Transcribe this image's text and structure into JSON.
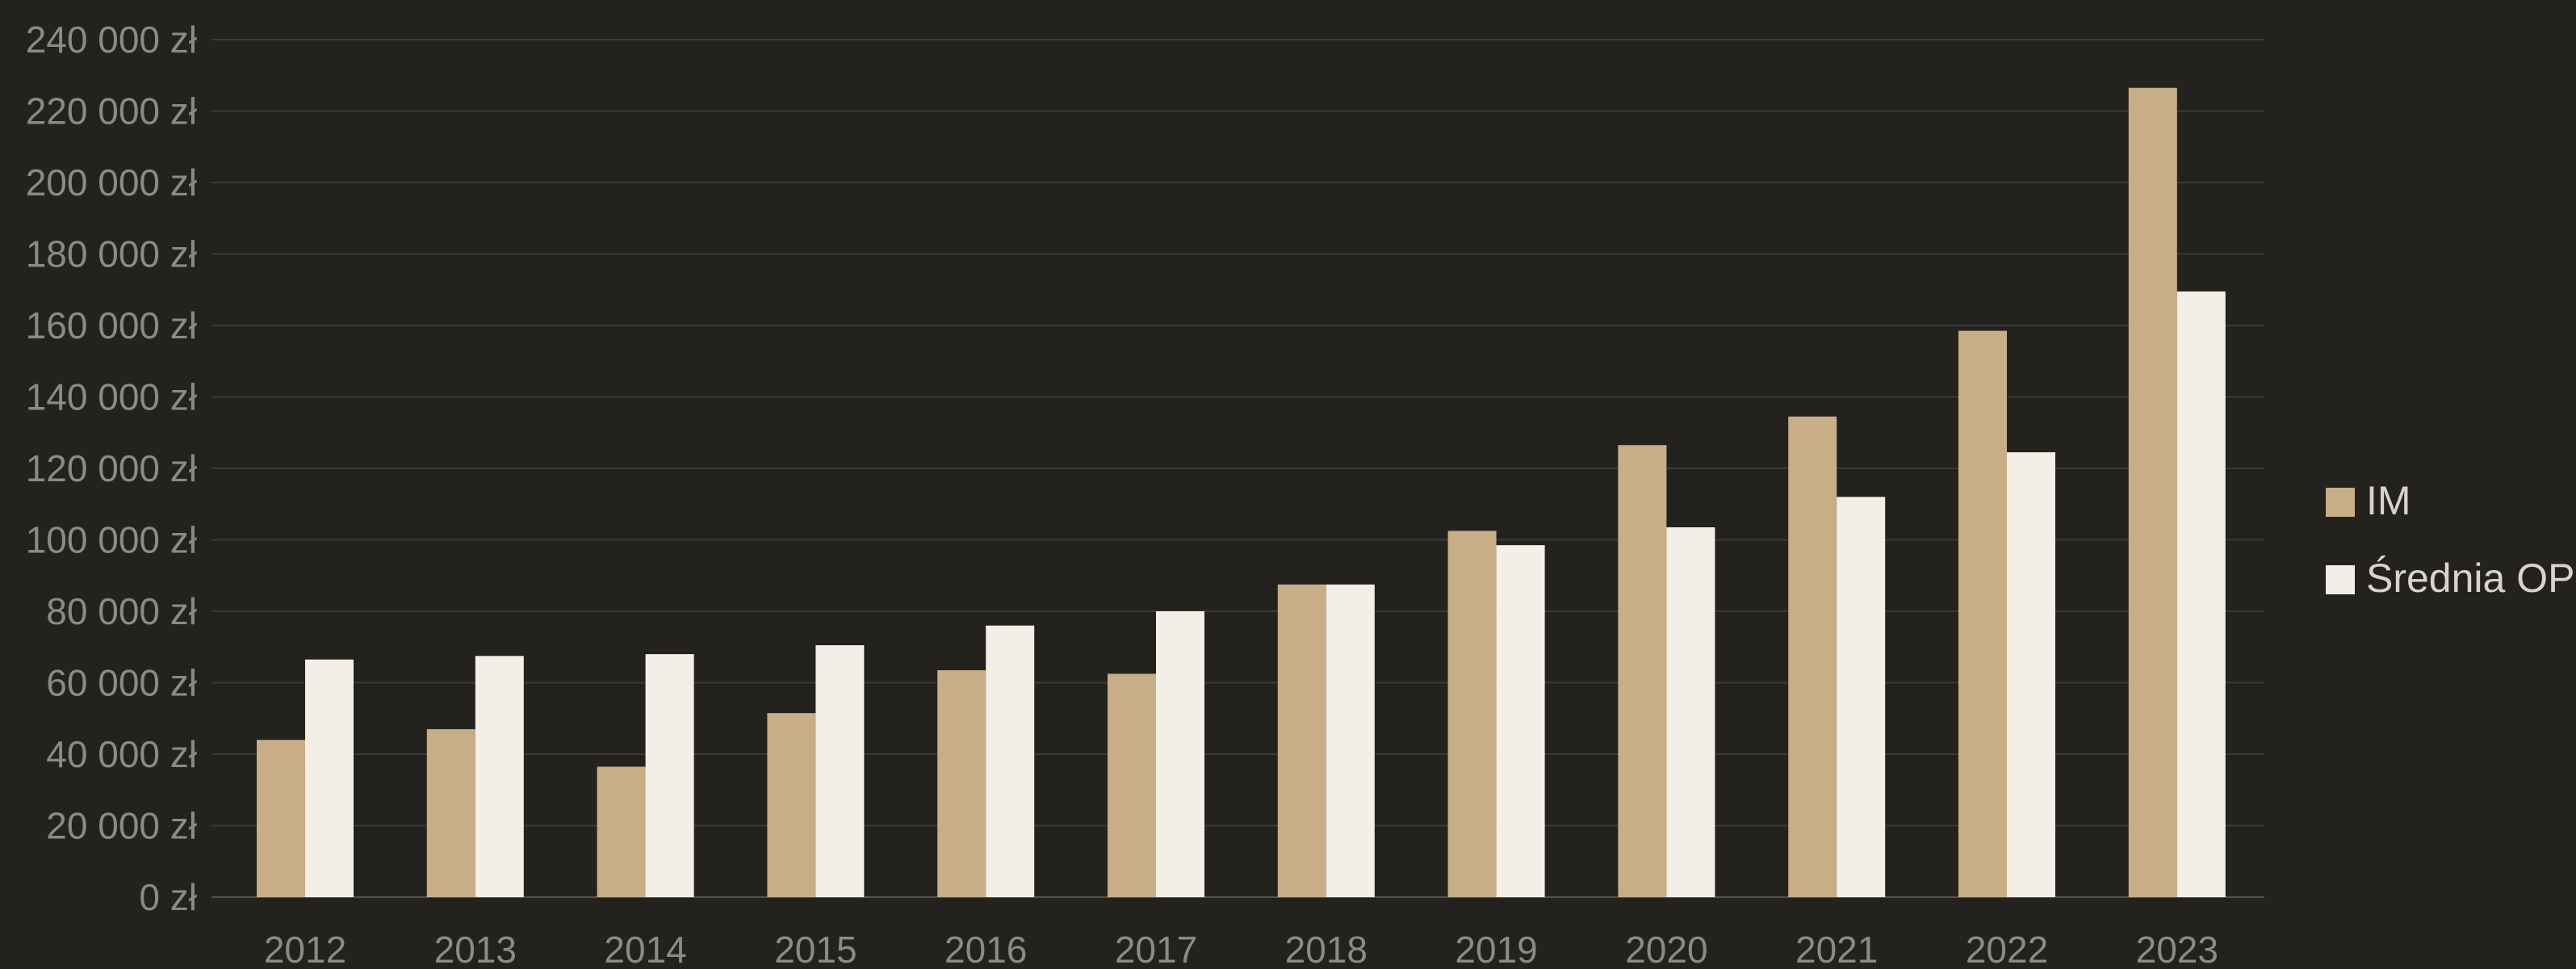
{
  "chart_data": {
    "type": "bar",
    "title": "",
    "xlabel": "",
    "ylabel": "",
    "categories": [
      "2012",
      "2013",
      "2014",
      "2015",
      "2016",
      "2017",
      "2018",
      "2019",
      "2020",
      "2021",
      "2022",
      "2023"
    ],
    "series": [
      {
        "name": "IM",
        "color": "#c8ae86",
        "values": [
          44000,
          47000,
          36500,
          51500,
          63500,
          62500,
          87500,
          102500,
          126500,
          134500,
          158500,
          226500
        ]
      },
      {
        "name": "Średnia OPP",
        "color": "#f4efe6",
        "values": [
          66500,
          67500,
          68000,
          70500,
          76000,
          80000,
          87500,
          98500,
          103500,
          112000,
          124500,
          169500
        ]
      }
    ],
    "ylim": [
      0,
      240000
    ],
    "yticks": [
      0,
      20000,
      40000,
      60000,
      80000,
      100000,
      120000,
      140000,
      160000,
      180000,
      200000,
      220000,
      240000
    ],
    "ytick_labels": [
      "0 zł",
      "20 000 zł",
      "40 000 zł",
      "60 000 zł",
      "80 000 zł",
      "100 000 zł",
      "120 000 zł",
      "140 000 zł",
      "160 000 zł",
      "180 000 zł",
      "200 000 zł",
      "220 000 zł",
      "240 000 zł"
    ],
    "grid": true,
    "legend": {
      "position": "right",
      "items": [
        "IM",
        "Średnia OPP"
      ]
    }
  }
}
